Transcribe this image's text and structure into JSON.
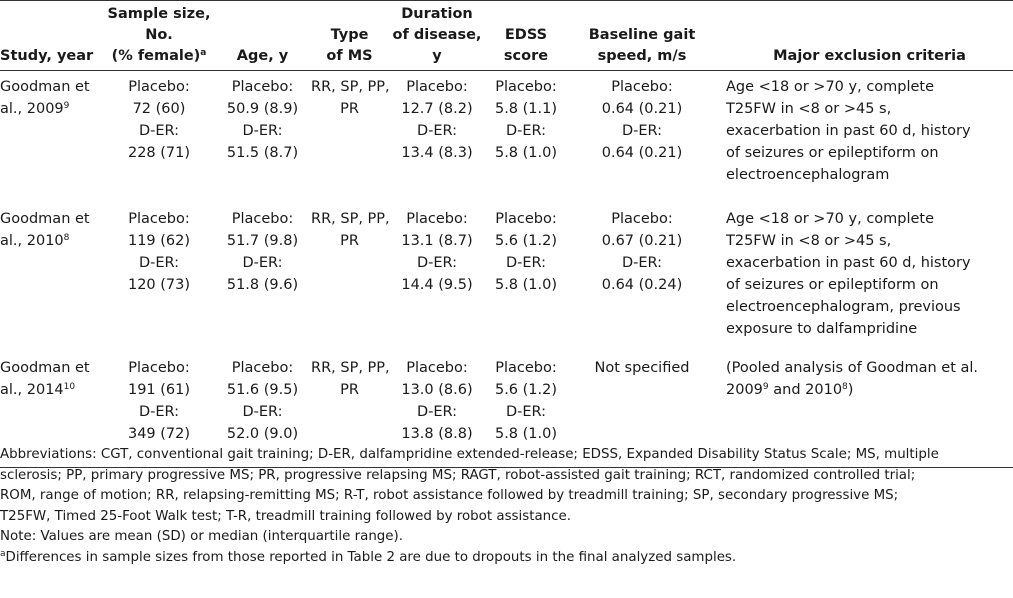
{
  "table": {
    "headers": {
      "study": [
        "Study, year"
      ],
      "sample": [
        "Sample size,",
        "No.",
        "(% female)"
      ],
      "sample_sup": "a",
      "age": [
        "Age, y"
      ],
      "type": [
        "Type",
        "of MS"
      ],
      "duration": [
        "Duration",
        "of disease,",
        "y"
      ],
      "edss": [
        "EDSS",
        "score"
      ],
      "gait": [
        "Baseline gait",
        "speed, m/s"
      ],
      "criteria": [
        "Major exclusion criteria"
      ]
    },
    "rows": [
      {
        "study": [
          "Goodman et",
          "al., 2009"
        ],
        "study_sup": "9",
        "sample": [
          "Placebo:",
          "72 (60)",
          "D-ER:",
          "228 (71)"
        ],
        "age": [
          "Placebo:",
          "50.9 (8.9)",
          "D-ER:",
          "51.5 (8.7)"
        ],
        "type": [
          "RR, SP, PP,",
          "PR"
        ],
        "duration": [
          "Placebo:",
          "12.7 (8.2)",
          "D-ER:",
          "13.4 (8.3)"
        ],
        "edss": [
          "Placebo:",
          "5.8 (1.1)",
          "D-ER:",
          "5.8 (1.0)"
        ],
        "gait": [
          "Placebo:",
          "0.64 (0.21)",
          "D-ER:",
          "0.64 (0.21)"
        ],
        "criteria": [
          "Age <18 or >70 y, complete",
          "T25FW in <8 or >45 s,",
          "exacerbation in past 60 d, history",
          "of seizures or epileptiform on",
          "electroencephalogram"
        ]
      },
      {
        "study": [
          "Goodman et",
          "al., 2010"
        ],
        "study_sup": "8",
        "sample": [
          "Placebo:",
          "119 (62)",
          "D-ER:",
          "120 (73)"
        ],
        "age": [
          "Placebo:",
          "51.7 (9.8)",
          "D-ER:",
          "51.8 (9.6)"
        ],
        "type": [
          "RR, SP, PP,",
          "PR"
        ],
        "duration": [
          "Placebo:",
          "13.1 (8.7)",
          "D-ER:",
          "14.4 (9.5)"
        ],
        "edss": [
          "Placebo:",
          "5.6 (1.2)",
          "D-ER:",
          "5.8 (1.0)"
        ],
        "gait": [
          "Placebo:",
          "0.67 (0.21)",
          "D-ER:",
          "0.64 (0.24)"
        ],
        "criteria": [
          "Age <18 or >70 y, complete",
          "T25FW in <8 or >45 s,",
          "exacerbation in past 60 d, history",
          "of seizures or epileptiform on",
          "electroencephalogram, previous",
          "exposure to dalfampridine"
        ]
      },
      {
        "study": [
          "Goodman et",
          "al., 2014"
        ],
        "study_sup": "10",
        "sample": [
          "Placebo:",
          "191 (61)",
          "D-ER:",
          "349 (72)"
        ],
        "age": [
          "Placebo:",
          "51.6 (9.5)",
          "D-ER:",
          "52.0 (9.0)"
        ],
        "type": [
          "RR, SP, PP,",
          "PR"
        ],
        "duration": [
          "Placebo:",
          "13.0 (8.6)",
          "D-ER:",
          "13.8 (8.8)"
        ],
        "edss": [
          "Placebo:",
          "5.6 (1.2)",
          "D-ER:",
          "5.8 (1.0)"
        ],
        "gait": [
          "Not specified"
        ],
        "criteria_parts": {
          "line1": "(Pooled analysis of Goodman et al.",
          "line2_a": "2009",
          "line2_sup1": "9",
          "line2_b": " and 2010",
          "line2_sup2": "8",
          "line2_c": ")"
        }
      }
    ]
  },
  "notes": {
    "abbreviations_1": "Abbreviations: CGT, conventional gait training; D-ER, dalfampridine extended-release; EDSS, Expanded Disability Status Scale; MS, multiple",
    "abbreviations_2": "sclerosis; PP, primary progressive MS; PR, progressive relapsing MS; RAGT, robot-assisted gait training; RCT, randomized controlled trial;",
    "abbreviations_3": "ROM, range of motion; RR, relapsing-remitting MS; R-T, robot assistance followed by treadmill training; SP, secondary progressive MS;",
    "abbreviations_4": "T25FW, Timed 25-Foot Walk test; T-R, treadmill training followed by robot assistance.",
    "values_note": "Note: Values are mean (SD) or median (interquartile range).",
    "footnote_mark": "a",
    "footnote_text": "Differences in sample sizes from those reported in Table 2 are due to dropouts in the final analyzed samples."
  }
}
